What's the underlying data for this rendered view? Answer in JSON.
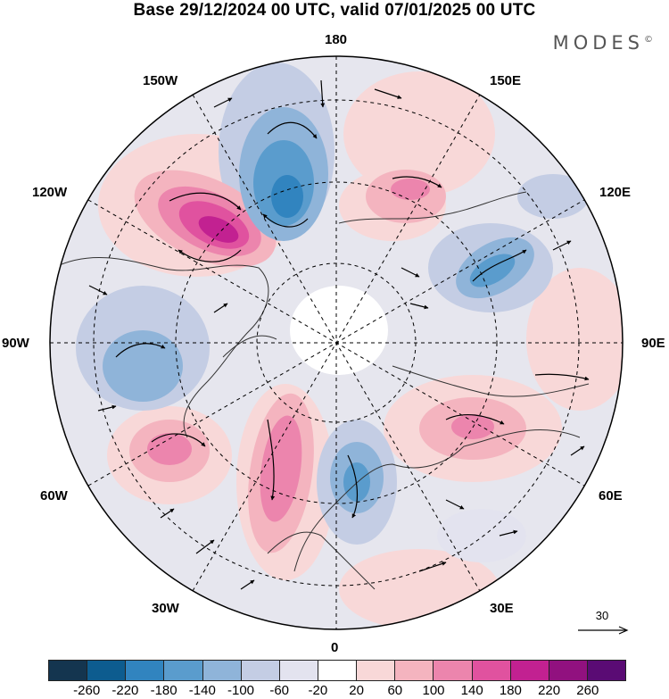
{
  "title": "Base 29/12/2024 00 UTC, valid 07/01/2025 00 UTC",
  "logo": {
    "text": "MODES",
    "mark": "©"
  },
  "longitude_labels": {
    "top": "180",
    "bottom": "0",
    "left": "90W",
    "right": "90E",
    "upper_left_1": "150W",
    "upper_left_2": "120W",
    "lower_left_1": "60W",
    "lower_left_2": "30W",
    "upper_right_1": "150E",
    "upper_right_2": "120E",
    "lower_right_1": "60E",
    "lower_right_2": "30E"
  },
  "reference_vector": {
    "label": "30"
  },
  "colorbar": {
    "colors": [
      "#14354f",
      "#0d5c8f",
      "#3184bf",
      "#5a9ccd",
      "#8fb4d9",
      "#c4cde4",
      "#e3e3ef",
      "#ffffff",
      "#f8d8d8",
      "#f4b4bf",
      "#ec85ad",
      "#e0529f",
      "#c22191",
      "#91117f",
      "#5a0b74"
    ],
    "tick_labels": [
      "-260",
      "-220",
      "-180",
      "-140",
      "-100",
      "-60",
      "-20",
      "20",
      "60",
      "100",
      "140",
      "180",
      "220",
      "260"
    ]
  }
}
